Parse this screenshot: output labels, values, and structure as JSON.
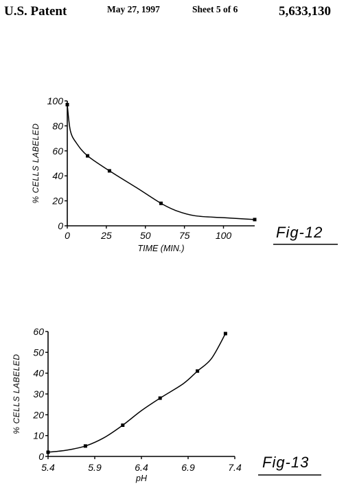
{
  "header": {
    "publication": "U.S. Patent",
    "date": "May 27, 1997",
    "sheet": "Sheet 5 of 6",
    "patent_number": "5,633,130"
  },
  "chart_data": [
    {
      "type": "line",
      "figure_label": "Fig-12",
      "xlabel": "TIME (MIN.)",
      "ylabel": "% CELLS LABELED",
      "xlim": [
        0,
        120
      ],
      "ylim": [
        0,
        100
      ],
      "x_ticks": [
        0,
        25,
        50,
        75,
        100
      ],
      "y_ticks": [
        0,
        20,
        40,
        60,
        80,
        100
      ],
      "grid": false,
      "series": [
        {
          "x": [
            0,
            13,
            27,
            60,
            120
          ],
          "y": [
            97,
            56,
            44,
            18,
            5
          ]
        }
      ],
      "curve_through": [
        [
          0,
          97
        ],
        [
          2,
          76
        ],
        [
          6,
          66
        ],
        [
          13,
          56
        ],
        [
          27,
          44
        ],
        [
          45,
          30
        ],
        [
          60,
          18
        ],
        [
          70,
          12
        ],
        [
          82,
          8
        ],
        [
          100,
          6.5
        ],
        [
          120,
          5
        ]
      ]
    },
    {
      "type": "line",
      "figure_label": "Fig-13",
      "xlabel": "pH",
      "ylabel": "% CELLS LABELED",
      "xlim": [
        5.4,
        7.4
      ],
      "ylim": [
        0,
        60
      ],
      "x_ticks": [
        "5.4",
        "5.9",
        "6.4",
        "6.9",
        "7.4"
      ],
      "y_ticks": [
        0,
        10,
        20,
        30,
        40,
        50,
        60
      ],
      "grid": false,
      "series": [
        {
          "x": [
            5.4,
            5.8,
            6.2,
            6.6,
            7.0,
            7.3
          ],
          "y": [
            2,
            5,
            15,
            28,
            41,
            59
          ]
        }
      ],
      "curve_through": [
        [
          5.4,
          2
        ],
        [
          5.6,
          3
        ],
        [
          5.8,
          5
        ],
        [
          6.0,
          9
        ],
        [
          6.2,
          15
        ],
        [
          6.4,
          22
        ],
        [
          6.6,
          28
        ],
        [
          6.85,
          35
        ],
        [
          7.0,
          41
        ],
        [
          7.15,
          47
        ],
        [
          7.3,
          59
        ]
      ]
    }
  ]
}
